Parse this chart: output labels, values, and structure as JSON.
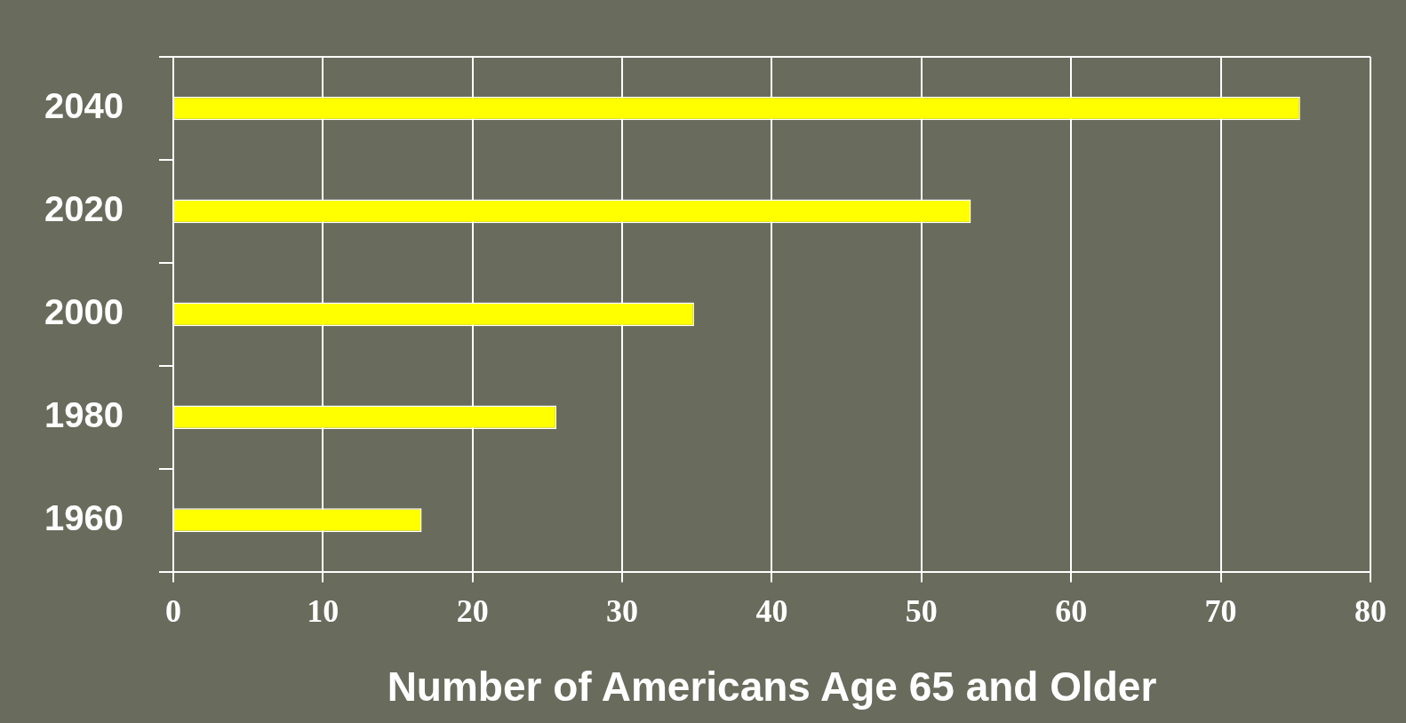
{
  "chart_data": {
    "type": "bar",
    "orientation": "horizontal",
    "xlabel": "Number of Americans Age 65 and Older",
    "categories": [
      "2040",
      "2020",
      "2000",
      "1980",
      "1960"
    ],
    "values": [
      75.3,
      53.3,
      34.8,
      25.6,
      16.6
    ],
    "color": "#ffff00",
    "xlim": [
      0,
      80
    ],
    "xticks": [
      0,
      10,
      20,
      30,
      40,
      50,
      60,
      70,
      80
    ],
    "grid": "x"
  }
}
